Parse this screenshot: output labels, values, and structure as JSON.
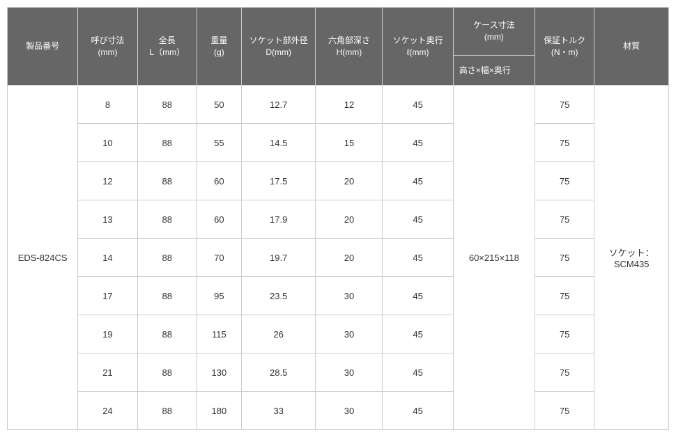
{
  "headers": {
    "product": "製品番号",
    "nominal": "呼び寸法\n(mm)",
    "length": "全長\nL（mm）",
    "weight": "重量\n(g)",
    "diameter": "ソケット部外径\nD(mm)",
    "hex": "六角部深さ\nH(mm)",
    "depth": "ソケット奥行\nℓ(mm)",
    "caseTop": "ケース寸法\n(mm)",
    "caseSub": "高さ×幅×奥行",
    "torque": "保証トルク\n(N・m)",
    "material": "材質"
  },
  "merged": {
    "product": "EDS-824CS",
    "case": "60×215×118",
    "material": "ソケット：SCM435"
  },
  "rows": [
    {
      "nominal": "8",
      "length": "88",
      "weight": "50",
      "diameter": "12.7",
      "hex": "12",
      "depth": "45",
      "torque": "75"
    },
    {
      "nominal": "10",
      "length": "88",
      "weight": "55",
      "diameter": "14.5",
      "hex": "15",
      "depth": "45",
      "torque": "75"
    },
    {
      "nominal": "12",
      "length": "88",
      "weight": "60",
      "diameter": "17.5",
      "hex": "20",
      "depth": "45",
      "torque": "75"
    },
    {
      "nominal": "13",
      "length": "88",
      "weight": "60",
      "diameter": "17.9",
      "hex": "20",
      "depth": "45",
      "torque": "75"
    },
    {
      "nominal": "14",
      "length": "88",
      "weight": "70",
      "diameter": "19.7",
      "hex": "20",
      "depth": "45",
      "torque": "75"
    },
    {
      "nominal": "17",
      "length": "88",
      "weight": "95",
      "diameter": "23.5",
      "hex": "30",
      "depth": "45",
      "torque": "75"
    },
    {
      "nominal": "19",
      "length": "88",
      "weight": "115",
      "diameter": "26",
      "hex": "30",
      "depth": "45",
      "torque": "75"
    },
    {
      "nominal": "21",
      "length": "88",
      "weight": "130",
      "diameter": "28.5",
      "hex": "30",
      "depth": "45",
      "torque": "75"
    },
    {
      "nominal": "24",
      "length": "88",
      "weight": "180",
      "diameter": "33",
      "hex": "30",
      "depth": "45",
      "torque": "75"
    }
  ]
}
